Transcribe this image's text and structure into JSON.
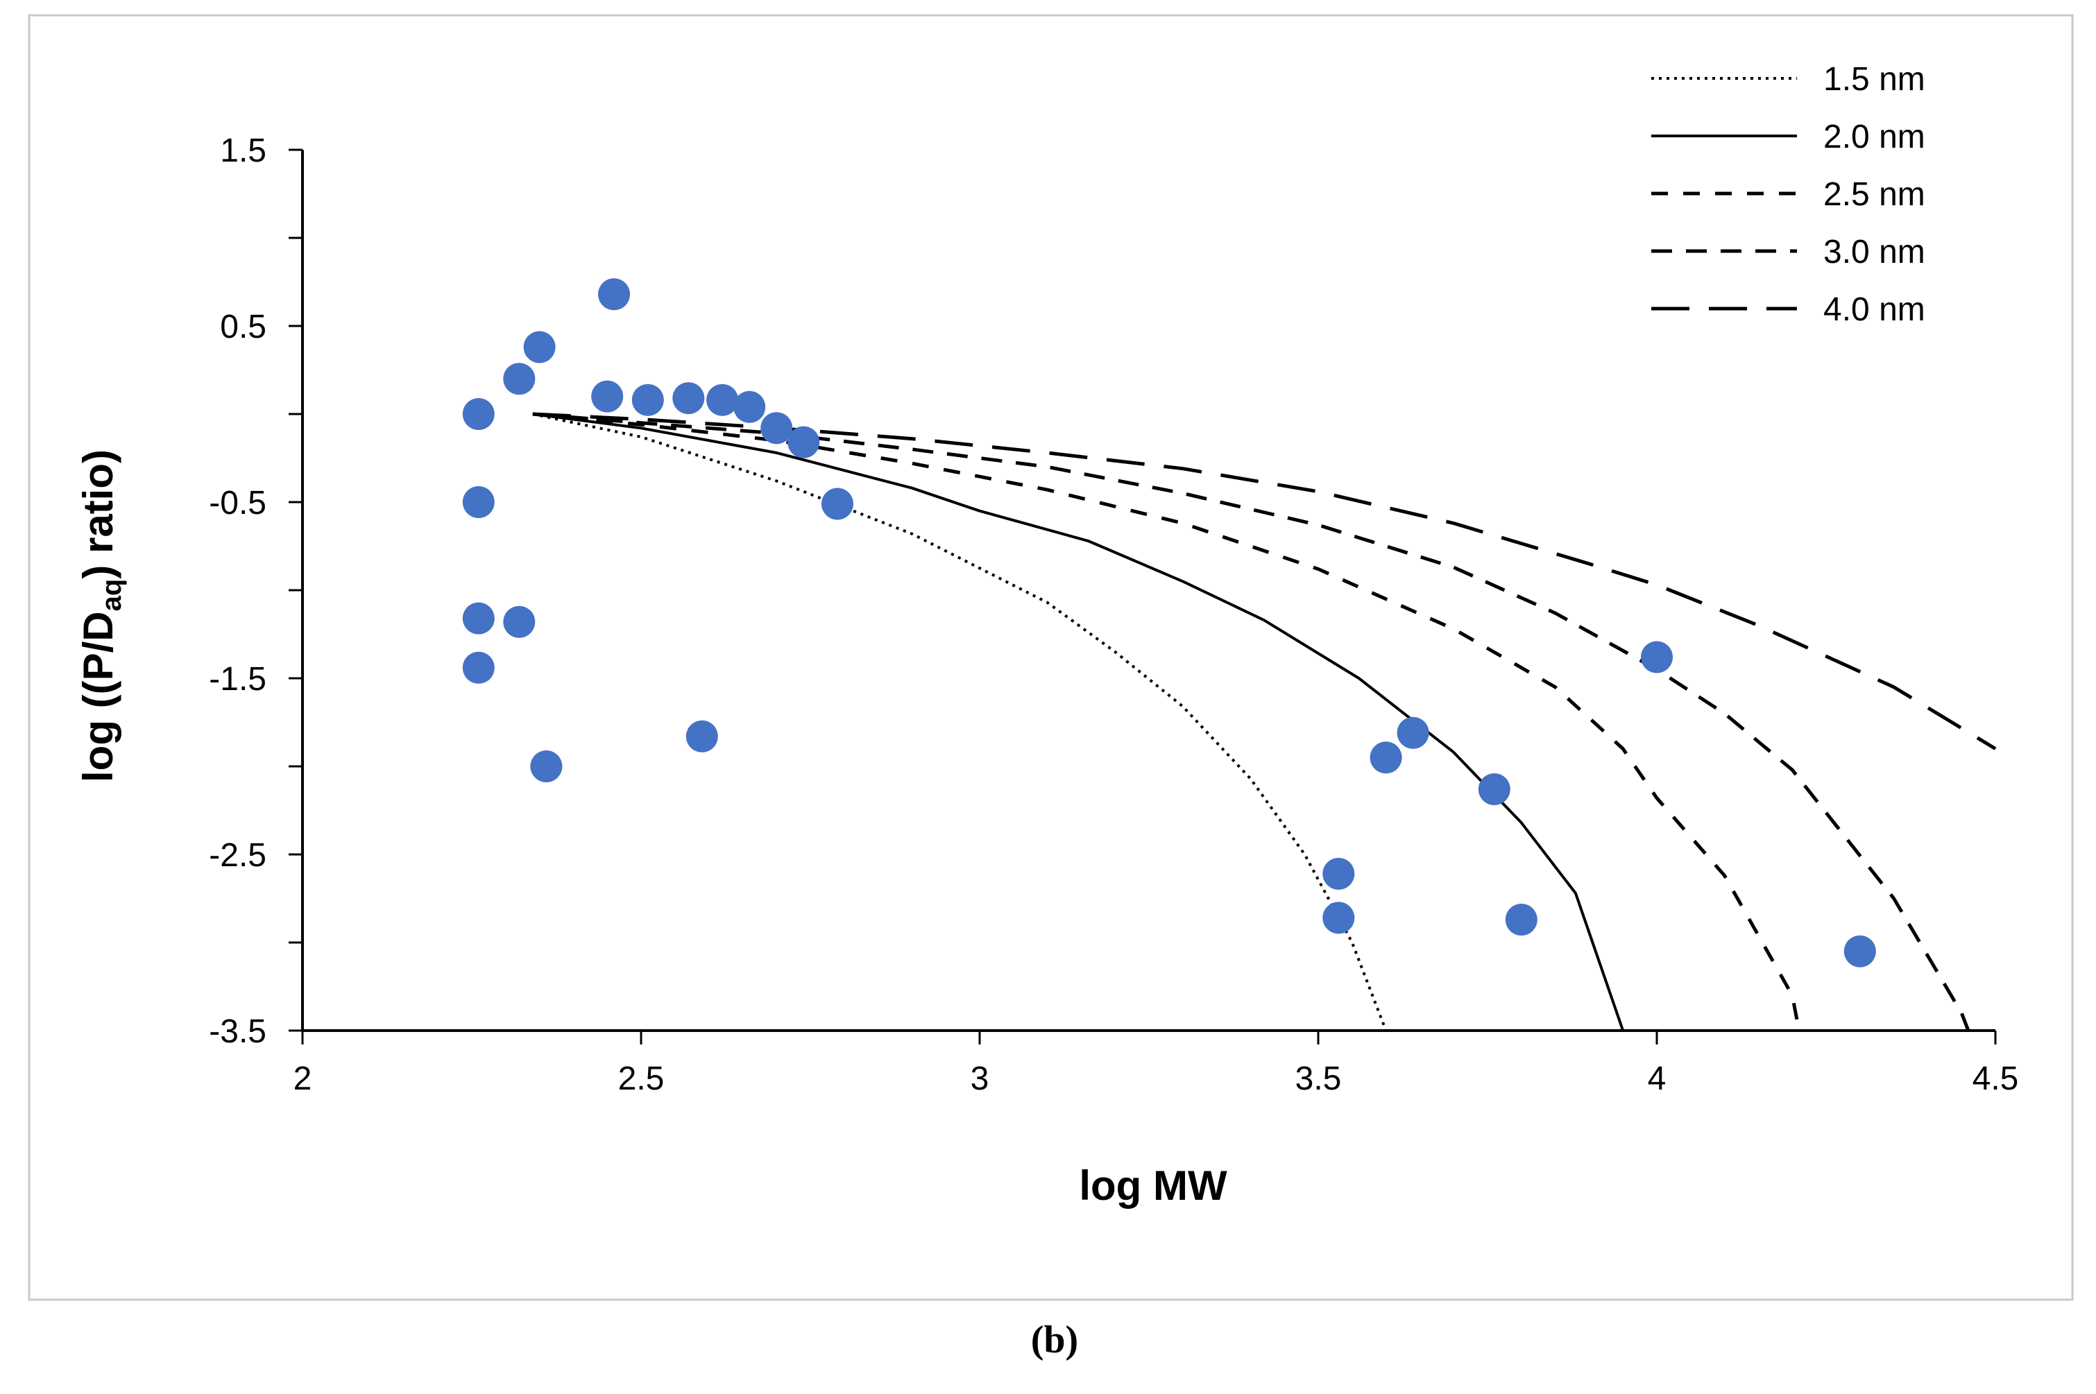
{
  "chart_data": {
    "type": "scatter",
    "title": "",
    "xlabel": "log MW",
    "ylabel": {
      "prefix": "log ((P/D",
      "subscript": "aq",
      "suffix": ") ratio)"
    },
    "xlim": [
      2,
      4.5
    ],
    "ylim": [
      -3.5,
      1.5
    ],
    "xticks": [
      "2",
      "2.5",
      "3",
      "3.5",
      "4",
      "4.5"
    ],
    "yticks": [
      "1.5",
      "0.5",
      "-0.5",
      "-1.5",
      "-2.5",
      "-3.5"
    ],
    "legend_position": "top-right",
    "caption": "(b)",
    "points": [
      [
        2.26,
        0.0
      ],
      [
        2.26,
        -0.5
      ],
      [
        2.26,
        -1.16
      ],
      [
        2.26,
        -1.44
      ],
      [
        2.32,
        0.2
      ],
      [
        2.32,
        -1.18
      ],
      [
        2.35,
        0.38
      ],
      [
        2.36,
        -2.0
      ],
      [
        2.45,
        0.1
      ],
      [
        2.46,
        0.68
      ],
      [
        2.51,
        0.08
      ],
      [
        2.57,
        0.09
      ],
      [
        2.62,
        0.08
      ],
      [
        2.66,
        0.04
      ],
      [
        2.7,
        -0.08
      ],
      [
        2.74,
        -0.16
      ],
      [
        2.59,
        -1.83
      ],
      [
        2.79,
        -0.51
      ],
      [
        3.53,
        -2.61
      ],
      [
        3.53,
        -2.86
      ],
      [
        3.6,
        -1.95
      ],
      [
        3.64,
        -1.81
      ],
      [
        3.76,
        -2.13
      ],
      [
        3.8,
        -2.87
      ],
      [
        4.0,
        -1.38
      ],
      [
        4.3,
        -3.05
      ]
    ],
    "marker_color": "#4472C4",
    "series": [
      {
        "name": "1.5 nm",
        "style": "dotted",
        "x": [
          2.34,
          2.5,
          2.7,
          2.9,
          3.1,
          3.2,
          3.3,
          3.4,
          3.48,
          3.55,
          3.6
        ],
        "y": [
          0.0,
          -0.13,
          -0.38,
          -0.68,
          -1.07,
          -1.35,
          -1.66,
          -2.07,
          -2.5,
          -3.0,
          -3.5
        ]
      },
      {
        "name": "2.0 nm",
        "style": "solid",
        "x": [
          2.34,
          2.5,
          2.7,
          2.9,
          3.0,
          3.16,
          3.3,
          3.42,
          3.56,
          3.7,
          3.8,
          3.88,
          3.95
        ],
        "y": [
          0.0,
          -0.08,
          -0.22,
          -0.42,
          -0.55,
          -0.72,
          -0.95,
          -1.17,
          -1.5,
          -1.92,
          -2.32,
          -2.72,
          -3.5
        ]
      },
      {
        "name": "2.5 nm",
        "style": "dash-short",
        "x": [
          2.34,
          2.5,
          2.7,
          2.9,
          3.1,
          3.3,
          3.5,
          3.7,
          3.85,
          3.95,
          4.0,
          4.1,
          4.2,
          4.21
        ],
        "y": [
          0.0,
          -0.06,
          -0.15,
          -0.28,
          -0.43,
          -0.62,
          -0.88,
          -1.22,
          -1.55,
          -1.9,
          -2.18,
          -2.62,
          -3.3,
          -3.5
        ]
      },
      {
        "name": "3.0 nm",
        "style": "dash-medium",
        "x": [
          2.34,
          2.5,
          2.7,
          2.9,
          3.1,
          3.3,
          3.5,
          3.7,
          3.85,
          4.0,
          4.1,
          4.2,
          4.35,
          4.45,
          4.46
        ],
        "y": [
          0.0,
          -0.05,
          -0.11,
          -0.2,
          -0.3,
          -0.45,
          -0.63,
          -0.87,
          -1.13,
          -1.45,
          -1.7,
          -2.02,
          -2.75,
          -3.4,
          -3.5
        ]
      },
      {
        "name": "4.0 nm",
        "style": "dash-long",
        "x": [
          2.34,
          2.5,
          2.7,
          2.9,
          3.1,
          3.3,
          3.5,
          3.7,
          3.9,
          4.0,
          4.15,
          4.35,
          4.5
        ],
        "y": [
          0.0,
          -0.03,
          -0.08,
          -0.14,
          -0.22,
          -0.31,
          -0.44,
          -0.62,
          -0.85,
          -0.97,
          -1.2,
          -1.55,
          -1.9
        ]
      }
    ]
  }
}
